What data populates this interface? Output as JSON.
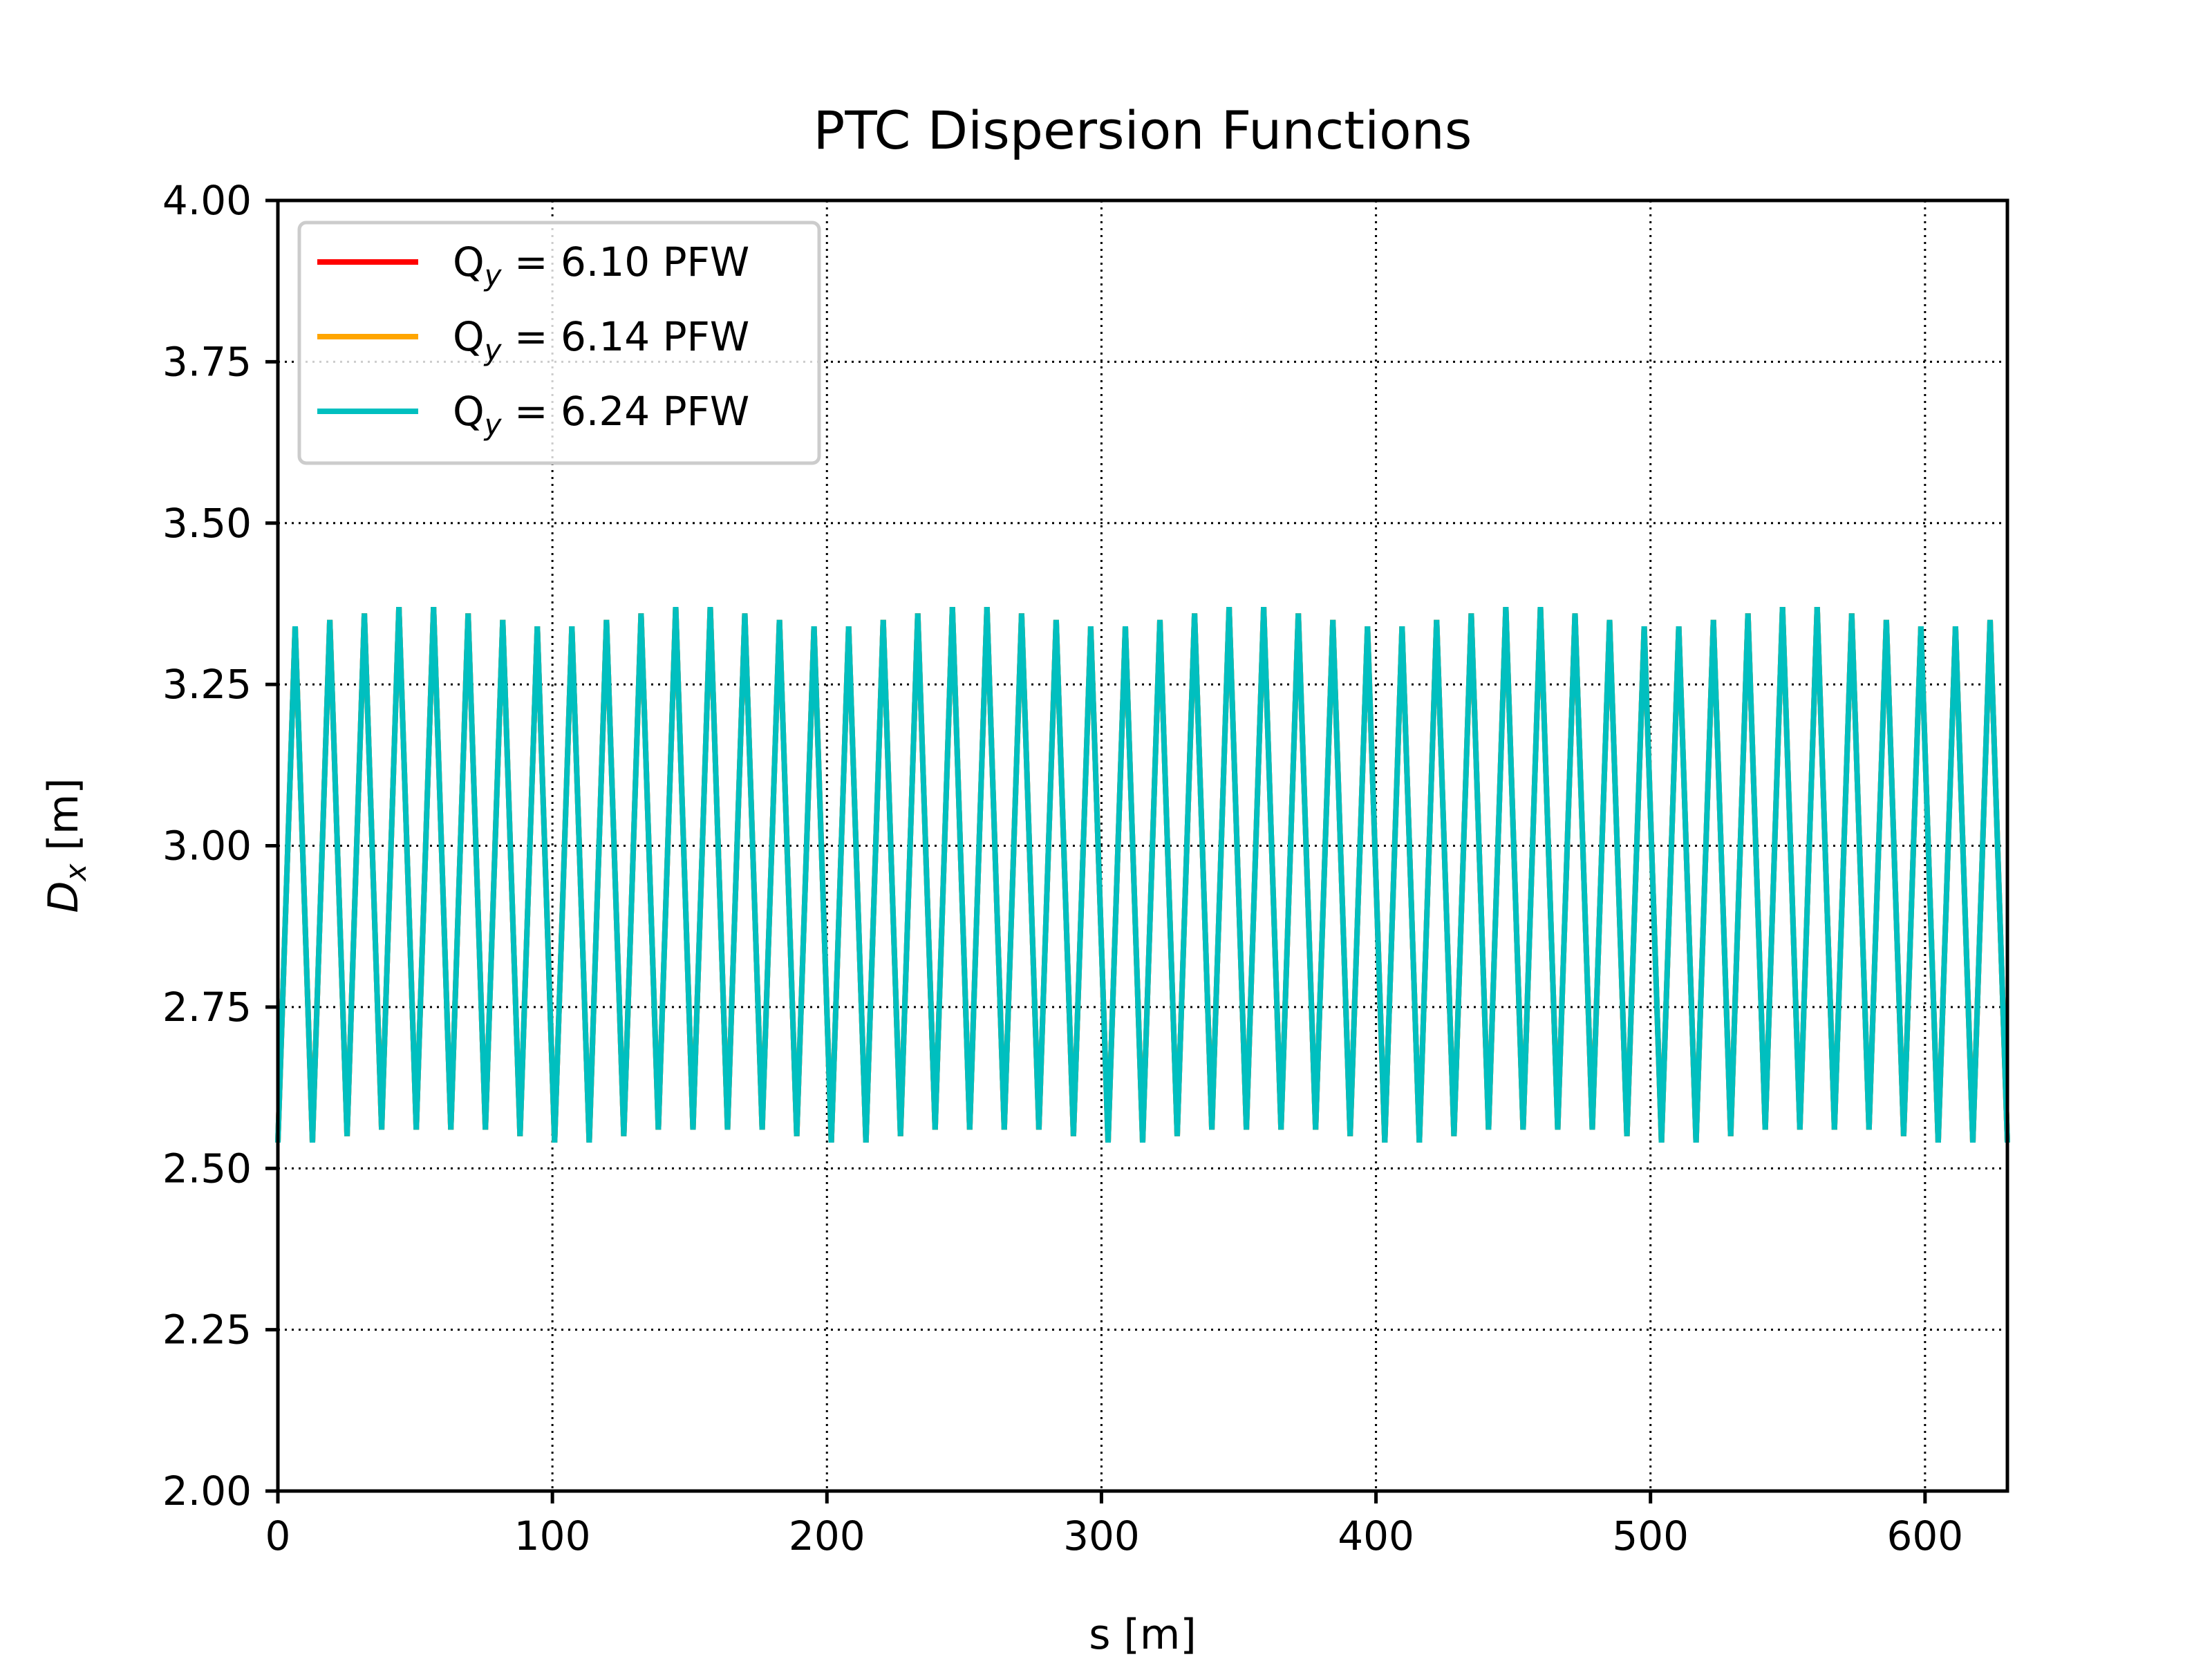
{
  "chart_data": {
    "type": "line",
    "title": "PTC Dispersion Functions",
    "xlabel": "s [m]",
    "ylabel_main": "D",
    "ylabel_sub": "x",
    "ylabel_unit": " [m]",
    "xlim": [
      0,
      630
    ],
    "ylim": [
      2.0,
      4.0
    ],
    "xticks": [
      0,
      100,
      200,
      300,
      400,
      500,
      600
    ],
    "yticks": [
      2.0,
      2.25,
      2.5,
      2.75,
      3.0,
      3.25,
      3.5,
      3.75,
      4.0
    ],
    "grid": true,
    "legend_position": "top-left",
    "series": [
      {
        "name_prefix": "Q",
        "name_sub": "y",
        "name_suffix": " = 6.10 PFW",
        "color": "#ff0000"
      },
      {
        "name_prefix": "Q",
        "name_sub": "y",
        "name_suffix": " = 6.14 PFW",
        "color": "#ffa500"
      },
      {
        "name_prefix": "Q",
        "name_sub": "y",
        "name_suffix": " = 6.24 PFW",
        "color": "#00bfbf"
      }
    ],
    "x": [
      0,
      6.3,
      12.6,
      18.9,
      25.2,
      31.5,
      37.8,
      44.1,
      50.4,
      56.7,
      63.0,
      69.3,
      75.6,
      81.9,
      88.2,
      94.5,
      100.8,
      107.1,
      113.4,
      119.7,
      126.0,
      132.3,
      138.6,
      144.9,
      151.2,
      157.5,
      163.8,
      170.1,
      176.4,
      182.7,
      189.0,
      195.3,
      201.6,
      207.9,
      214.2,
      220.5,
      226.8,
      233.1,
      239.4,
      245.7,
      252.0,
      258.3,
      264.6,
      270.9,
      277.2,
      283.5,
      289.8,
      296.1,
      302.4,
      308.7,
      315.0,
      321.3,
      327.6,
      333.9,
      340.2,
      346.5,
      352.8,
      359.1,
      365.4,
      371.7,
      378.0,
      384.3,
      390.6,
      396.9,
      403.2,
      409.5,
      415.8,
      422.1,
      428.4,
      434.7,
      441.0,
      447.3,
      453.6,
      459.9,
      466.2,
      472.5,
      478.8,
      485.1,
      491.4,
      497.7,
      504.0,
      510.3,
      516.6,
      522.9,
      529.2,
      535.5,
      541.8,
      548.1,
      554.4,
      560.7,
      567.0,
      573.3,
      579.6,
      585.9,
      592.2,
      598.5,
      604.8,
      611.1,
      617.4,
      623.7,
      630.0
    ],
    "y": [
      2.54,
      3.34,
      2.54,
      3.35,
      2.55,
      3.36,
      2.56,
      3.37,
      2.56,
      3.37,
      2.56,
      3.36,
      2.56,
      3.35,
      2.55,
      3.34,
      2.54,
      3.34,
      2.54,
      3.35,
      2.55,
      3.36,
      2.56,
      3.37,
      2.56,
      3.37,
      2.56,
      3.36,
      2.56,
      3.35,
      2.55,
      3.34,
      2.54,
      3.34,
      2.54,
      3.35,
      2.55,
      3.36,
      2.56,
      3.37,
      2.56,
      3.37,
      2.56,
      3.36,
      2.56,
      3.35,
      2.55,
      3.34,
      2.54,
      3.34,
      2.54,
      3.35,
      2.55,
      3.36,
      2.56,
      3.37,
      2.56,
      3.37,
      2.56,
      3.36,
      2.56,
      3.35,
      2.55,
      3.34,
      2.54,
      3.34,
      2.54,
      3.35,
      2.55,
      3.36,
      2.56,
      3.37,
      2.56,
      3.37,
      2.56,
      3.36,
      2.56,
      3.35,
      2.55,
      3.34,
      2.54,
      3.34,
      2.54,
      3.35,
      2.55,
      3.36,
      2.56,
      3.37,
      2.56,
      3.37,
      2.56,
      3.36,
      2.56,
      3.35,
      2.55,
      3.34,
      2.54,
      3.34,
      2.54,
      3.35,
      2.54
    ]
  }
}
